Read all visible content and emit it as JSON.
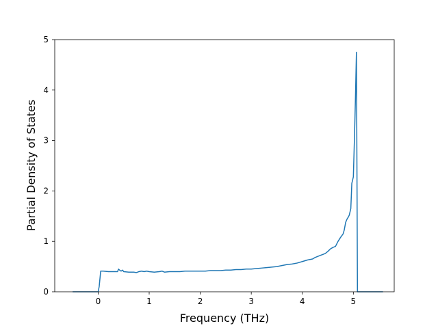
{
  "chart_data": {
    "type": "line",
    "title": "",
    "xlabel": "Frequency (THz)",
    "ylabel": "Partial Density of States",
    "xlim": [
      -0.85,
      5.8
    ],
    "ylim": [
      0,
      5
    ],
    "xticks": [
      0,
      1,
      2,
      3,
      4,
      5
    ],
    "yticks": [
      0,
      1,
      2,
      3,
      4,
      5
    ],
    "xtick_labels": [
      "0",
      "1",
      "2",
      "3",
      "4",
      "5"
    ],
    "ytick_labels": [
      "0",
      "1",
      "2",
      "3",
      "4",
      "5"
    ],
    "grid": false,
    "legend": "none",
    "color": "#1f77b4",
    "series": [
      {
        "x": [
          -0.5,
          -0.05,
          -0.02,
          0.0,
          0.02,
          0.05,
          0.1,
          0.2,
          0.3,
          0.35,
          0.38,
          0.4,
          0.42,
          0.45,
          0.48,
          0.5,
          0.6,
          0.7,
          0.75,
          0.8,
          0.85,
          0.9,
          0.95,
          1.0,
          1.1,
          1.2,
          1.25,
          1.3,
          1.4,
          1.5,
          1.6,
          1.7,
          1.8,
          1.9,
          2.0,
          2.1,
          2.2,
          2.3,
          2.4,
          2.5,
          2.6,
          2.7,
          2.8,
          2.9,
          3.0,
          3.1,
          3.2,
          3.3,
          3.4,
          3.5,
          3.6,
          3.7,
          3.8,
          3.9,
          4.0,
          4.1,
          4.2,
          4.25,
          4.3,
          4.35,
          4.4,
          4.45,
          4.5,
          4.55,
          4.6,
          4.65,
          4.7,
          4.75,
          4.8,
          4.82,
          4.85,
          4.88,
          4.9,
          4.92,
          4.95,
          4.97,
          5.0,
          5.02,
          5.04,
          5.06,
          5.07,
          5.08,
          5.1,
          5.3,
          5.58
        ],
        "values": [
          0.0,
          0.0,
          0.0,
          0.0,
          0.1,
          0.41,
          0.41,
          0.4,
          0.4,
          0.4,
          0.4,
          0.45,
          0.43,
          0.41,
          0.43,
          0.4,
          0.39,
          0.39,
          0.38,
          0.4,
          0.41,
          0.4,
          0.41,
          0.4,
          0.39,
          0.4,
          0.41,
          0.39,
          0.4,
          0.4,
          0.4,
          0.41,
          0.41,
          0.41,
          0.41,
          0.41,
          0.42,
          0.42,
          0.42,
          0.43,
          0.43,
          0.44,
          0.44,
          0.45,
          0.45,
          0.46,
          0.47,
          0.48,
          0.49,
          0.5,
          0.52,
          0.54,
          0.55,
          0.57,
          0.6,
          0.63,
          0.65,
          0.68,
          0.7,
          0.72,
          0.74,
          0.76,
          0.8,
          0.85,
          0.88,
          0.9,
          1.0,
          1.08,
          1.15,
          1.22,
          1.38,
          1.45,
          1.48,
          1.52,
          1.65,
          2.15,
          2.28,
          3.0,
          3.8,
          4.75,
          2.5,
          0.0,
          0.0,
          0.0,
          0.0
        ]
      }
    ]
  }
}
